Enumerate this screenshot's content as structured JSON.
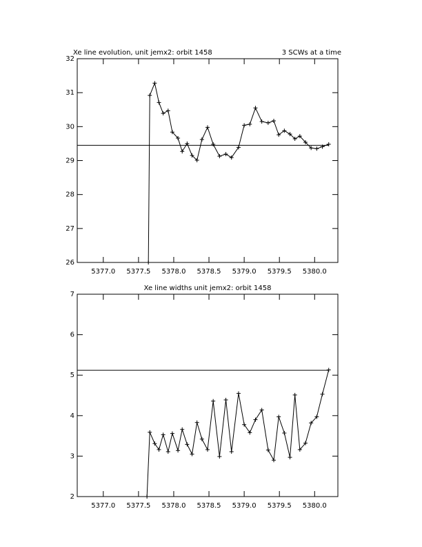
{
  "chart_data": [
    {
      "type": "line",
      "title": "Xe line evolution, unit jemx2: orbit 1458",
      "subtitle": "3 SCWs at a time",
      "x": [
        5377.64,
        5377.66,
        5377.73,
        5377.79,
        5377.85,
        5377.92,
        5377.98,
        5378.06,
        5378.12,
        5378.19,
        5378.26,
        5378.33,
        5378.4,
        5378.48,
        5378.56,
        5378.65,
        5378.74,
        5378.82,
        5378.92,
        5379.0,
        5379.08,
        5379.16,
        5379.25,
        5379.34,
        5379.42,
        5379.49,
        5379.57,
        5379.65,
        5379.72,
        5379.79,
        5379.87,
        5379.95,
        5380.03,
        5380.11,
        5380.2
      ],
      "values": [
        26,
        30.92,
        31.28,
        30.71,
        30.39,
        30.47,
        29.84,
        29.66,
        29.27,
        29.5,
        29.15,
        29.01,
        29.62,
        29.98,
        29.48,
        29.13,
        29.19,
        29.09,
        29.39,
        30.04,
        30.07,
        30.55,
        30.15,
        30.11,
        30.17,
        29.76,
        29.88,
        29.78,
        29.64,
        29.72,
        29.54,
        29.37,
        29.35,
        29.41,
        29.48
      ],
      "reference_line": 29.45,
      "color": "#000000",
      "xlim": [
        5376.63,
        5380.33
      ],
      "xticks": [
        {
          "value": 5377,
          "label": "5377.0"
        },
        {
          "value": 5377.5,
          "label": "5377.5"
        },
        {
          "value": 5378,
          "label": "5378.0"
        },
        {
          "value": 5378.5,
          "label": "5378.5"
        },
        {
          "value": 5379,
          "label": "5379.0"
        },
        {
          "value": 5379.5,
          "label": "5379.5"
        },
        {
          "value": 5380,
          "label": "5380.0"
        }
      ],
      "ylim": [
        26,
        32
      ],
      "yticks": [
        26,
        27,
        28,
        29,
        30,
        31,
        32
      ]
    },
    {
      "type": "line",
      "title": "Xe line widths unit jemx2: orbit 1458",
      "x": [
        5377.62,
        5377.66,
        5377.73,
        5377.79,
        5377.85,
        5377.92,
        5377.98,
        5378.06,
        5378.12,
        5378.19,
        5378.26,
        5378.33,
        5378.4,
        5378.48,
        5378.56,
        5378.65,
        5378.74,
        5378.82,
        5378.92,
        5379.0,
        5379.08,
        5379.16,
        5379.25,
        5379.34,
        5379.42,
        5379.49,
        5379.57,
        5379.65,
        5379.72,
        5379.79,
        5379.87,
        5379.95,
        5380.03,
        5380.11,
        5380.2
      ],
      "values": [
        2,
        3.59,
        3.31,
        3.16,
        3.53,
        3.11,
        3.56,
        3.14,
        3.66,
        3.29,
        3.05,
        3.83,
        3.42,
        3.16,
        4.36,
        2.99,
        4.39,
        3.11,
        4.55,
        3.78,
        3.58,
        3.9,
        4.14,
        3.15,
        2.9,
        3.97,
        3.57,
        2.97,
        4.51,
        3.16,
        3.32,
        3.82,
        3.97,
        4.53,
        5.13
      ],
      "reference_line": 5.12,
      "color": "#000000",
      "xlim": [
        5376.63,
        5380.33
      ],
      "xticks": [
        {
          "value": 5377,
          "label": "5377.0"
        },
        {
          "value": 5377.5,
          "label": "5377.5"
        },
        {
          "value": 5378,
          "label": "5378.0"
        },
        {
          "value": 5378.5,
          "label": "5378.5"
        },
        {
          "value": 5379,
          "label": "5379.0"
        },
        {
          "value": 5379.5,
          "label": "5379.5"
        },
        {
          "value": 5380,
          "label": "5380.0"
        }
      ],
      "ylim": [
        2,
        7
      ],
      "yticks": [
        2,
        3,
        4,
        5,
        6,
        7
      ]
    }
  ]
}
